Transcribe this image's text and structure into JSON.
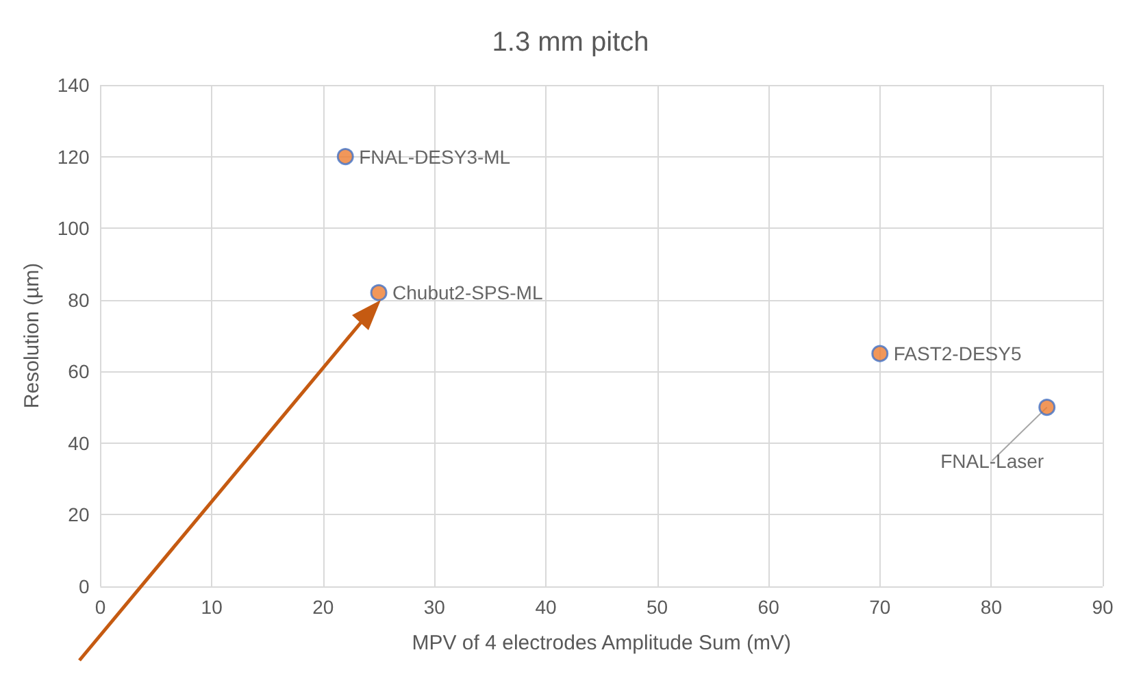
{
  "chart_data": {
    "type": "scatter",
    "title": "1.3 mm pitch",
    "xlabel": "MPV of 4 electrodes Amplitude Sum (mV)",
    "ylabel": "Resolution (µm)",
    "x": [
      22,
      25,
      70,
      85
    ],
    "values": [
      120,
      82,
      65,
      50
    ],
    "color": "#ed7d31",
    "marker": "circle",
    "xlim": [
      0,
      90
    ],
    "xticks": [
      0,
      10,
      20,
      30,
      40,
      50,
      60,
      70,
      80,
      90
    ],
    "ylim": [
      0,
      140
    ],
    "yticks": [
      0,
      20,
      40,
      60,
      80,
      100,
      120,
      140
    ],
    "grid": true,
    "annotations": [
      {
        "text": "FNAL-DESY3-ML",
        "x": 22,
        "y": 120
      },
      {
        "text": "Chubut2-SPS-ML",
        "x": 25,
        "y": 82
      },
      {
        "text": "FAST2-DESY5",
        "x": 70,
        "y": 65
      },
      {
        "text": "FNAL-Laser",
        "x": 85,
        "y": 50
      }
    ]
  }
}
